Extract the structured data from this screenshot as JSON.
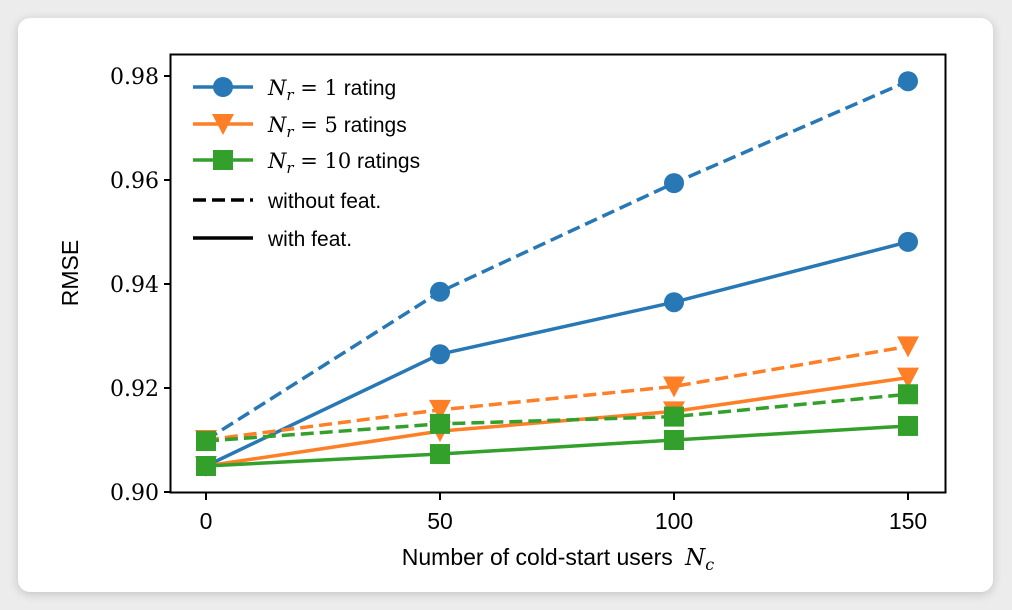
{
  "chart_data": {
    "type": "line",
    "title": "",
    "xlabel": "Number of cold-start users",
    "xlabel_math": "N",
    "xlabel_math_sub": "c",
    "ylabel": "RMSE",
    "x": [
      0,
      50,
      100,
      150
    ],
    "xlim": [
      -10,
      160
    ],
    "ylim": [
      0.9,
      0.984
    ],
    "xticks": [
      "0",
      "50",
      "100",
      "150"
    ],
    "yticks": [
      "0.90",
      "0.92",
      "0.94",
      "0.96",
      "0.98"
    ],
    "ytick_values": [
      0.9,
      0.92,
      0.94,
      0.96,
      0.98
    ],
    "xtick_values": [
      0,
      50,
      100,
      150
    ],
    "grid": false,
    "legend_position": "top-left",
    "series": [
      {
        "name": "N_r = 1 rating, without feat.",
        "group": "Nr1",
        "style": "dashed",
        "marker": "circle",
        "color": "#2878b5",
        "values": [
          0.91,
          0.9385,
          0.9594,
          0.979
        ]
      },
      {
        "name": "N_r = 1 rating, with feat.",
        "group": "Nr1",
        "style": "solid",
        "marker": "circle",
        "color": "#2878b5",
        "values": [
          0.905,
          0.9265,
          0.9365,
          0.9481
        ]
      },
      {
        "name": "N_r = 5 ratings, without feat.",
        "group": "Nr5",
        "style": "dashed",
        "marker": "triangle-down",
        "color": "#ff7f27",
        "values": [
          0.91,
          0.9158,
          0.9203,
          0.928
        ]
      },
      {
        "name": "N_r = 5 ratings, with feat.",
        "group": "Nr5",
        "style": "solid",
        "marker": "triangle-down",
        "color": "#ff7f27",
        "values": [
          0.905,
          0.9117,
          0.9155,
          0.922
        ]
      },
      {
        "name": "N_r = 10 ratings, without feat.",
        "group": "Nr10",
        "style": "dashed",
        "marker": "square",
        "color": "#33a02c",
        "values": [
          0.9098,
          0.9131,
          0.9145,
          0.9188
        ]
      },
      {
        "name": "N_r = 10 ratings, with feat.",
        "group": "Nr10",
        "style": "solid",
        "marker": "square",
        "color": "#33a02c",
        "values": [
          0.905,
          0.9073,
          0.91,
          0.9127
        ]
      }
    ],
    "legend": [
      {
        "math": "N",
        "sub": "r",
        "eq": " = ",
        "num": "1",
        "text": " rating",
        "color": "#2878b5",
        "marker": "circle",
        "style": "solid"
      },
      {
        "math": "N",
        "sub": "r",
        "eq": " = ",
        "num": "5",
        "text": " ratings",
        "color": "#ff7f27",
        "marker": "triangle-down",
        "style": "solid"
      },
      {
        "math": "N",
        "sub": "r",
        "eq": " = ",
        "num": "10",
        "text": " ratings",
        "color": "#33a02c",
        "marker": "square",
        "style": "solid"
      },
      {
        "text": "without feat.",
        "color": "#000000",
        "marker": "none",
        "style": "dashed"
      },
      {
        "text": "with feat.",
        "color": "#000000",
        "marker": "none",
        "style": "solid"
      }
    ]
  }
}
